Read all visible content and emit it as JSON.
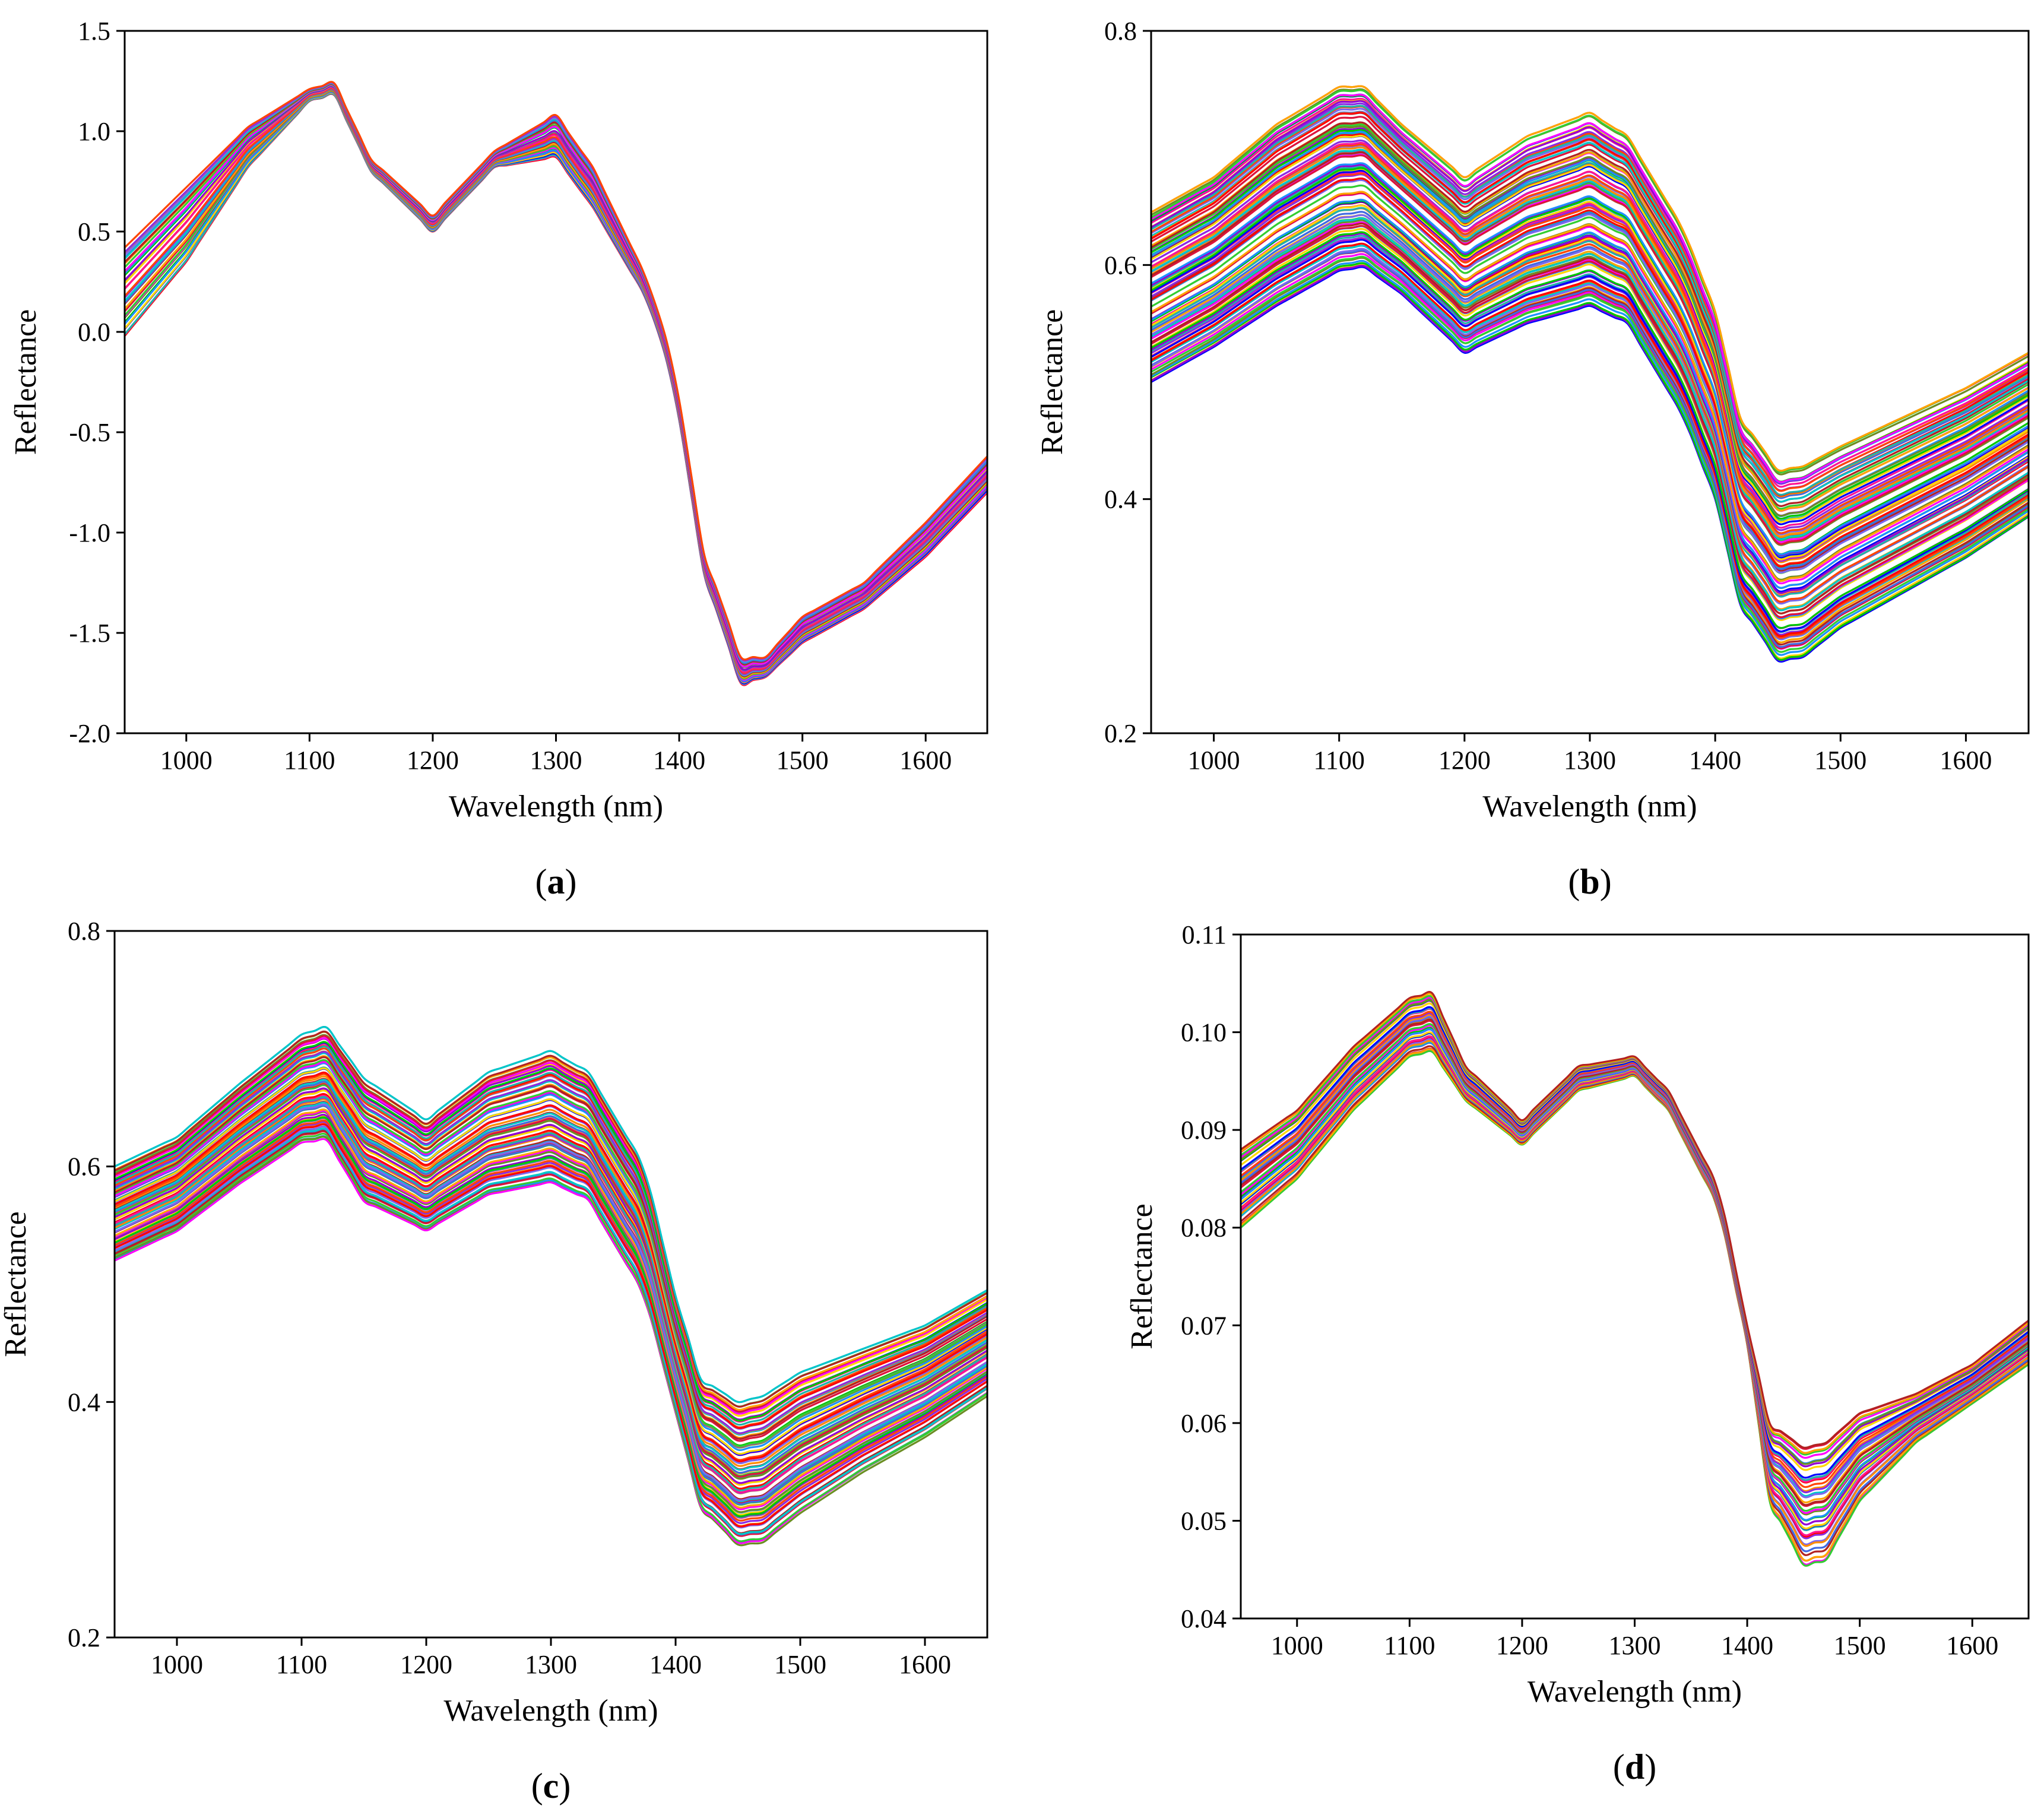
{
  "figure": {
    "panels": [
      "a",
      "b",
      "c",
      "d"
    ]
  },
  "chart_data": [
    {
      "panel": "a",
      "panel_label": "a",
      "type": "line",
      "xlabel": "Wavelength (nm)",
      "ylabel": "Reflectance",
      "xlim": [
        950,
        1650
      ],
      "ylim": [
        -2.0,
        1.5
      ],
      "xticks": [
        1000,
        1100,
        1200,
        1300,
        1400,
        1500,
        1600
      ],
      "yticks": [
        -2.0,
        -1.5,
        -1.0,
        -0.5,
        0.0,
        0.5,
        1.0,
        1.5
      ],
      "ytick_labels": [
        "-2.0",
        "-1.5",
        "-1.0",
        "-0.5",
        "0.0",
        "0.5",
        "1.0",
        "1.5"
      ],
      "legend": "none",
      "grid": false,
      "series_count": 40,
      "x": [
        950,
        1000,
        1050,
        1100,
        1120,
        1150,
        1200,
        1250,
        1300,
        1330,
        1375,
        1395,
        1420,
        1450,
        1470,
        1500,
        1550,
        1600,
        1650
      ],
      "profile_low": [
        -0.02,
        0.35,
        0.82,
        1.15,
        1.18,
        0.8,
        0.5,
        0.82,
        0.87,
        0.62,
        0.15,
        -0.25,
        -1.2,
        -1.75,
        -1.72,
        -1.55,
        -1.38,
        -1.12,
        -0.8
      ],
      "profile_high": [
        0.42,
        0.72,
        1.02,
        1.21,
        1.24,
        0.86,
        0.58,
        0.9,
        1.08,
        0.82,
        0.25,
        -0.15,
        -1.1,
        -1.62,
        -1.62,
        -1.42,
        -1.25,
        -0.95,
        -0.62
      ]
    },
    {
      "panel": "b",
      "panel_label": "b",
      "type": "line",
      "xlabel": "Wavelength (nm)",
      "ylabel": "Reflectance",
      "xlim": [
        950,
        1650
      ],
      "ylim": [
        0.2,
        0.8
      ],
      "xticks": [
        1000,
        1100,
        1200,
        1300,
        1400,
        1500,
        1600
      ],
      "yticks": [
        0.2,
        0.4,
        0.6,
        0.8
      ],
      "ytick_labels": [
        "0.2",
        "0.4",
        "0.6",
        "0.8"
      ],
      "legend": "none",
      "grid": false,
      "series_count": 110,
      "x": [
        950,
        1000,
        1050,
        1100,
        1120,
        1150,
        1200,
        1250,
        1300,
        1330,
        1375,
        1400,
        1420,
        1450,
        1470,
        1500,
        1550,
        1600,
        1650
      ],
      "profile_low": [
        0.5,
        0.53,
        0.565,
        0.595,
        0.598,
        0.575,
        0.525,
        0.55,
        0.565,
        0.55,
        0.47,
        0.4,
        0.31,
        0.262,
        0.265,
        0.29,
        0.32,
        0.35,
        0.385
      ],
      "profile_high": [
        0.645,
        0.675,
        0.72,
        0.752,
        0.752,
        0.72,
        0.675,
        0.71,
        0.73,
        0.71,
        0.63,
        0.56,
        0.47,
        0.425,
        0.428,
        0.445,
        0.47,
        0.495,
        0.525
      ]
    },
    {
      "panel": "c",
      "panel_label": "c",
      "type": "line",
      "xlabel": "Wavelength (nm)",
      "ylabel": "Reflectance",
      "xlim": [
        950,
        1650
      ],
      "ylim": [
        0.2,
        0.8
      ],
      "xticks": [
        1000,
        1100,
        1200,
        1300,
        1400,
        1500,
        1600
      ],
      "yticks": [
        0.2,
        0.4,
        0.6,
        0.8
      ],
      "ytick_labels": [
        "0.2",
        "0.4",
        "0.6",
        "0.8"
      ],
      "legend": "none",
      "grid": false,
      "series_count": 90,
      "x": [
        950,
        1000,
        1050,
        1100,
        1120,
        1150,
        1200,
        1250,
        1300,
        1330,
        1375,
        1400,
        1420,
        1450,
        1470,
        1500,
        1550,
        1600,
        1650
      ],
      "profile_low": [
        0.52,
        0.545,
        0.585,
        0.62,
        0.622,
        0.57,
        0.545,
        0.575,
        0.585,
        0.57,
        0.49,
        0.39,
        0.31,
        0.278,
        0.28,
        0.305,
        0.34,
        0.37,
        0.405
      ],
      "profile_high": [
        0.6,
        0.625,
        0.67,
        0.712,
        0.718,
        0.675,
        0.64,
        0.68,
        0.698,
        0.68,
        0.6,
        0.49,
        0.42,
        0.4,
        0.405,
        0.425,
        0.445,
        0.465,
        0.495
      ]
    },
    {
      "panel": "d",
      "panel_label": "d",
      "type": "line",
      "xlabel": "Wavelength (nm)",
      "ylabel": "Reflectance",
      "xlim": [
        950,
        1650
      ],
      "ylim": [
        0.04,
        0.11
      ],
      "xticks": [
        1000,
        1100,
        1200,
        1300,
        1400,
        1500,
        1600
      ],
      "yticks": [
        0.04,
        0.05,
        0.06,
        0.07,
        0.08,
        0.09,
        0.1,
        0.11
      ],
      "ytick_labels": [
        "0.04",
        "0.05",
        "0.06",
        "0.07",
        "0.08",
        "0.09",
        "0.10",
        "0.11"
      ],
      "legend": "none",
      "grid": false,
      "series_count": 45,
      "x": [
        950,
        1000,
        1050,
        1100,
        1120,
        1150,
        1200,
        1250,
        1300,
        1330,
        1375,
        1400,
        1420,
        1450,
        1470,
        1500,
        1550,
        1600,
        1650
      ],
      "profile_low": [
        0.08,
        0.085,
        0.092,
        0.0975,
        0.098,
        0.093,
        0.0885,
        0.094,
        0.0955,
        0.092,
        0.082,
        0.068,
        0.052,
        0.0455,
        0.046,
        0.052,
        0.058,
        0.062,
        0.066
      ],
      "profile_high": [
        0.088,
        0.092,
        0.0985,
        0.1035,
        0.104,
        0.0965,
        0.091,
        0.0965,
        0.0975,
        0.094,
        0.084,
        0.07,
        0.06,
        0.0575,
        0.058,
        0.061,
        0.063,
        0.066,
        0.0705
      ]
    }
  ]
}
